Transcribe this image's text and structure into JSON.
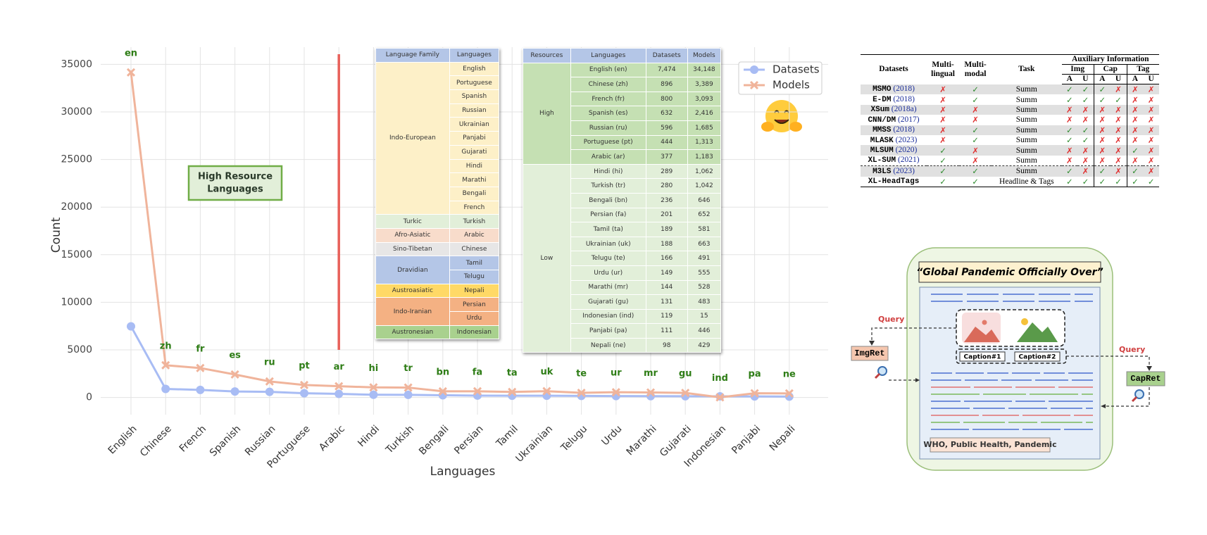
{
  "chart_data": {
    "type": "line",
    "x_label": "Languages",
    "y_label": "Count",
    "categories": [
      "English",
      "Chinese",
      "French",
      "Spanish",
      "Russian",
      "Portuguese",
      "Arabic",
      "Hindi",
      "Turkish",
      "Bengali",
      "Persian",
      "Tamil",
      "Ukrainian",
      "Telugu",
      "Urdu",
      "Marathi",
      "Gujarati",
      "Indonesian",
      "Panjabi",
      "Nepali"
    ],
    "point_labels": [
      "en",
      "zh",
      "fr",
      "es",
      "ru",
      "pt",
      "ar",
      "hi",
      "tr",
      "bn",
      "fa",
      "ta",
      "uk",
      "te",
      "ur",
      "mr",
      "gu",
      "ind",
      "pa",
      "ne"
    ],
    "series": [
      {
        "name": "Datasets",
        "color": "#a8bcf4",
        "marker": "circle",
        "values": [
          7474,
          896,
          800,
          632,
          596,
          444,
          377,
          289,
          280,
          236,
          201,
          189,
          188,
          166,
          149,
          144,
          131,
          119,
          111,
          98
        ]
      },
      {
        "name": "Models",
        "color": "#f0b49b",
        "marker": "cross",
        "values": [
          34148,
          3389,
          3093,
          2416,
          1685,
          1313,
          1183,
          1062,
          1042,
          646,
          652,
          581,
          663,
          491,
          555,
          528,
          483,
          15,
          446,
          429
        ]
      }
    ],
    "ylim": [
      -1800,
      36800
    ],
    "yticks": [
      0,
      5000,
      10000,
      15000,
      20000,
      25000,
      30000,
      35000
    ],
    "grid": true,
    "legend": "upper right",
    "annotation": [
      "High Resource",
      "Languages"
    ],
    "vline": {
      "category": "Arabic",
      "color": "#e8605a"
    }
  },
  "language_table": {
    "headers": [
      "Language Family",
      "Languages"
    ],
    "header_color": "#b4c6e7",
    "groups": [
      {
        "family": "Indo-European",
        "color": "#fdf0c8",
        "languages": [
          "English",
          "Portuguese",
          "Spanish",
          "Russian",
          "Ukrainian",
          "Panjabi",
          "Gujarati",
          "Hindi",
          "Marathi",
          "Bengali",
          "French"
        ]
      },
      {
        "family": "Turkic",
        "color": "#e2efd9",
        "languages": [
          "Turkish"
        ]
      },
      {
        "family": "Afro-Asiatic",
        "color": "#f8dccb",
        "languages": [
          "Arabic"
        ]
      },
      {
        "family": "Sino-Tibetan",
        "color": "#e7e6e6",
        "languages": [
          "Chinese"
        ]
      },
      {
        "family": "Dravidian",
        "color": "#b4c6e7",
        "languages": [
          "Tamil",
          "Telugu"
        ]
      },
      {
        "family": "Austroasiatic",
        "color": "#ffd966",
        "languages": [
          "Nepali"
        ]
      },
      {
        "family": "Indo-Iranian",
        "color": "#f4b183",
        "languages": [
          "Persian",
          "Urdu"
        ]
      },
      {
        "family": "Austronesian",
        "color": "#a9d18e",
        "languages": [
          "Indonesian"
        ]
      }
    ]
  },
  "resource_table": {
    "headers": [
      "Resources",
      "Languages",
      "Datasets",
      "Models"
    ],
    "header_color": "#b4c6e7",
    "groups": [
      {
        "level": "High",
        "color": "#c5e0b3",
        "rows": [
          [
            "English (en)",
            "7,474",
            "34,148"
          ],
          [
            "Chinese (zh)",
            "896",
            "3,389"
          ],
          [
            "French (fr)",
            "800",
            "3,093"
          ],
          [
            "Spanish (es)",
            "632",
            "2,416"
          ],
          [
            "Russian (ru)",
            "596",
            "1,685"
          ],
          [
            "Portuguese (pt)",
            "444",
            "1,313"
          ],
          [
            "Arabic (ar)",
            "377",
            "1,183"
          ]
        ]
      },
      {
        "level": "Low",
        "color": "#e2efd9",
        "rows": [
          [
            "Hindi (hi)",
            "289",
            "1,062"
          ],
          [
            "Turkish (tr)",
            "280",
            "1,042"
          ],
          [
            "Bengali (bn)",
            "236",
            "646"
          ],
          [
            "Persian (fa)",
            "201",
            "652"
          ],
          [
            "Tamil (ta)",
            "189",
            "581"
          ],
          [
            "Ukrainian (uk)",
            "188",
            "663"
          ],
          [
            "Telugu (te)",
            "166",
            "491"
          ],
          [
            "Urdu (ur)",
            "149",
            "555"
          ],
          [
            "Marathi (mr)",
            "144",
            "528"
          ],
          [
            "Gujarati (gu)",
            "131",
            "483"
          ],
          [
            "Indonesian (ind)",
            "119",
            "15"
          ],
          [
            "Panjabi (pa)",
            "111",
            "446"
          ],
          [
            "Nepali (ne)",
            "98",
            "429"
          ]
        ]
      }
    ]
  },
  "comparison_table": {
    "headers": [
      "Datasets",
      "Multi-lingual",
      "Multi-modal",
      "Task"
    ],
    "aux_header": "Auxiliary Information",
    "aux_groups": [
      "Img",
      "Cap",
      "Tag"
    ],
    "aux_sub": [
      "A",
      "U"
    ],
    "symbol_colors": {
      "✓": "#2e8b2e",
      "✗": "#e03030"
    },
    "rows": [
      {
        "name": "MSMO",
        "year": "(2018)",
        "cells": [
          "✗",
          "✓",
          "Summ",
          "✓",
          "✓",
          "✓",
          "✗",
          "✗",
          "✗"
        ]
      },
      {
        "name": "E-DM",
        "year": "(2018)",
        "cells": [
          "✗",
          "✓",
          "Summ",
          "✓",
          "✓",
          "✓",
          "✓",
          "✗",
          "✗"
        ]
      },
      {
        "name": "XSum",
        "year": "(2018a)",
        "cells": [
          "✗",
          "✗",
          "Summ",
          "✗",
          "✗",
          "✗",
          "✗",
          "✗",
          "✗"
        ]
      },
      {
        "name": "CNN/DM",
        "year": "(2017)",
        "cells": [
          "✗",
          "✗",
          "Summ",
          "✗",
          "✗",
          "✗",
          "✗",
          "✗",
          "✗"
        ]
      },
      {
        "name": "MMSS",
        "year": "(2018)",
        "cells": [
          "✗",
          "✓",
          "Summ",
          "✓",
          "✓",
          "✗",
          "✗",
          "✗",
          "✗"
        ]
      },
      {
        "name": "MLASK",
        "year": "(2023)",
        "cells": [
          "✗",
          "✓",
          "Summ",
          "✓",
          "✓",
          "✗",
          "✗",
          "✗",
          "✗"
        ]
      },
      {
        "name": "MLSUM",
        "year": "(2020)",
        "cells": [
          "✓",
          "✗",
          "Summ",
          "✗",
          "✗",
          "✗",
          "✗",
          "✓",
          "✗"
        ]
      },
      {
        "name": "XL-SUM",
        "year": "(2021)",
        "cells": [
          "✓",
          "✗",
          "Summ",
          "✗",
          "✗",
          "✗",
          "✗",
          "✗",
          "✗"
        ]
      },
      {
        "name": "M3LS",
        "year": "(2023)",
        "cells": [
          "✓",
          "✓",
          "Summ",
          "✓",
          "✗",
          "✓",
          "✗",
          "✓",
          "✗"
        ]
      },
      {
        "name": "XL-HeadTags",
        "year": "",
        "cells": [
          "✓",
          "✓",
          "Headline & Tags",
          "✓",
          "✓",
          "✓",
          "✓",
          "✓",
          "✓"
        ]
      }
    ]
  },
  "diagram": {
    "title": "“Global Pandemic Officially Over”",
    "img_retriever": "ImgRet",
    "cap_retriever": "CapRet",
    "query_labels": [
      "Query",
      "Query"
    ],
    "captions": [
      "Caption#1",
      "Caption#2"
    ],
    "tags": "WHO, Public Health, Pandemic"
  }
}
